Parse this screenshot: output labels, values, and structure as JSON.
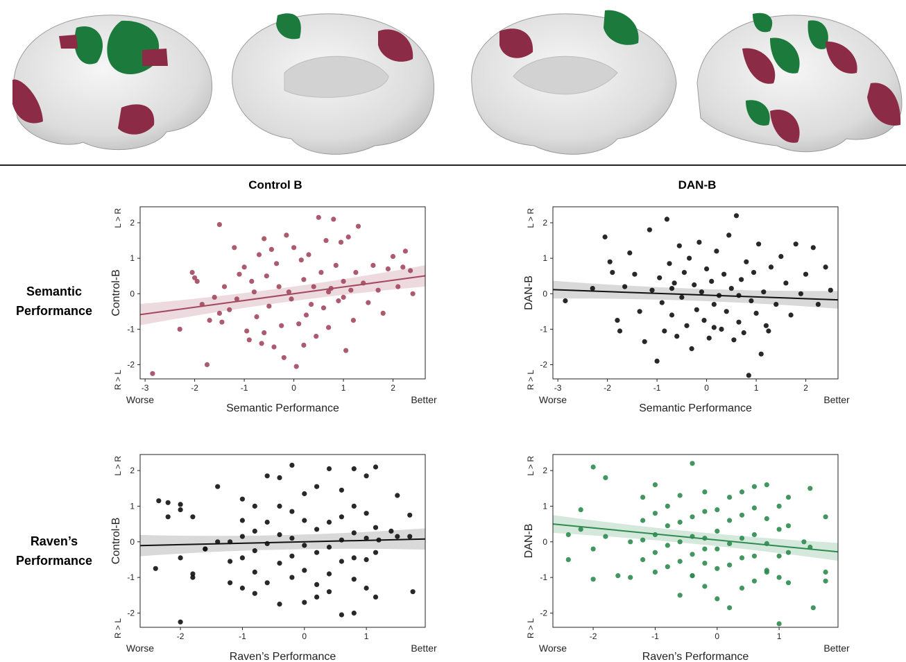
{
  "figure": {
    "col_titles": [
      "Control B",
      "DAN-B"
    ],
    "row_labels": [
      [
        "Semantic",
        "Performance"
      ],
      [
        "Raven’s",
        "Performance"
      ]
    ],
    "colors": {
      "control_red": "#a3485e",
      "dan_green": "#2e8b4f",
      "black": "#111111",
      "brain_surface": "#e6e6e6",
      "brain_red": "#8b2b45",
      "brain_green": "#1c7a3c"
    }
  },
  "chart_data": [
    {
      "id": "control-b-semantic",
      "type": "scatter",
      "xlabel": "Semantic Performance",
      "ylabel": "Control-B",
      "x_low_label": "Worse",
      "x_high_label": "Better",
      "y_high_label": "L > R",
      "y_low_label": "R > L",
      "x_ticks": [
        "-3",
        "-2",
        "-1",
        "0",
        "1",
        "2"
      ],
      "y_ticks": [
        "-2",
        "-1",
        "0",
        "1",
        "2"
      ],
      "xlim": [
        -3.1,
        2.65
      ],
      "ylim": [
        -2.4,
        2.45
      ],
      "color": "#a3485e",
      "fit": {
        "intercept": 0.0,
        "slope": 0.19,
        "band": 0.3
      },
      "points": [
        [
          -2.85,
          -2.25
        ],
        [
          -2.3,
          -1.0
        ],
        [
          -2.05,
          0.6
        ],
        [
          -2.0,
          0.45
        ],
        [
          -1.95,
          0.35
        ],
        [
          -1.85,
          -0.3
        ],
        [
          -1.75,
          -2.0
        ],
        [
          -1.7,
          -0.75
        ],
        [
          -1.6,
          -0.1
        ],
        [
          -1.5,
          1.95
        ],
        [
          -1.5,
          -0.55
        ],
        [
          -1.45,
          -0.8
        ],
        [
          -1.4,
          0.2
        ],
        [
          -1.3,
          -0.45
        ],
        [
          -1.2,
          1.3
        ],
        [
          -1.15,
          -0.15
        ],
        [
          -1.1,
          0.55
        ],
        [
          -1.0,
          0.75
        ],
        [
          -0.95,
          -1.05
        ],
        [
          -0.9,
          -1.3
        ],
        [
          -0.85,
          0.35
        ],
        [
          -0.8,
          0.05
        ],
        [
          -0.75,
          -0.65
        ],
        [
          -0.7,
          1.1
        ],
        [
          -0.65,
          -1.4
        ],
        [
          -0.6,
          1.55
        ],
        [
          -0.55,
          0.5
        ],
        [
          -0.5,
          -0.35
        ],
        [
          -0.45,
          1.25
        ],
        [
          -0.4,
          -1.5
        ],
        [
          -0.35,
          0.85
        ],
        [
          -0.3,
          0.2
        ],
        [
          -0.25,
          -0.9
        ],
        [
          -0.2,
          -1.8
        ],
        [
          -0.15,
          1.65
        ],
        [
          -0.1,
          0.05
        ],
        [
          -0.05,
          -0.15
        ],
        [
          0.0,
          1.3
        ],
        [
          0.05,
          -2.05
        ],
        [
          0.1,
          -0.85
        ],
        [
          0.15,
          0.95
        ],
        [
          0.2,
          0.4
        ],
        [
          0.25,
          -0.6
        ],
        [
          0.3,
          1.1
        ],
        [
          0.35,
          -0.3
        ],
        [
          0.4,
          0.2
        ],
        [
          0.45,
          -1.2
        ],
        [
          0.5,
          2.15
        ],
        [
          0.55,
          0.6
        ],
        [
          0.6,
          -0.4
        ],
        [
          0.65,
          1.5
        ],
        [
          0.7,
          -0.95
        ],
        [
          0.75,
          0.15
        ],
        [
          0.8,
          2.1
        ],
        [
          0.85,
          0.8
        ],
        [
          0.9,
          -0.2
        ],
        [
          0.95,
          1.45
        ],
        [
          1.0,
          0.35
        ],
        [
          1.05,
          -1.6
        ],
        [
          1.1,
          1.6
        ],
        [
          1.15,
          0.1
        ],
        [
          1.2,
          -0.75
        ],
        [
          1.25,
          0.6
        ],
        [
          1.3,
          1.9
        ],
        [
          1.4,
          0.3
        ],
        [
          1.5,
          -0.25
        ],
        [
          1.6,
          0.8
        ],
        [
          1.7,
          0.1
        ],
        [
          1.8,
          -0.55
        ],
        [
          1.9,
          0.7
        ],
        [
          2.0,
          1.05
        ],
        [
          2.1,
          0.2
        ],
        [
          2.2,
          0.75
        ],
        [
          2.25,
          1.2
        ],
        [
          2.35,
          0.65
        ],
        [
          2.4,
          0.0
        ],
        [
          -0.6,
          -1.1
        ],
        [
          0.2,
          -1.45
        ],
        [
          0.7,
          0.05
        ],
        [
          1.0,
          -0.1
        ]
      ]
    },
    {
      "id": "dan-b-semantic",
      "type": "scatter",
      "xlabel": "Semantic Performance",
      "ylabel": "DAN-B",
      "x_low_label": "Worse",
      "x_high_label": "Better",
      "y_high_label": "L > R",
      "y_low_label": "R > L",
      "x_ticks": [
        "-3",
        "-2",
        "-1",
        "0",
        "1",
        "2"
      ],
      "y_ticks": [
        "-2",
        "-1",
        "0",
        "1",
        "2"
      ],
      "xlim": [
        -3.1,
        2.65
      ],
      "ylim": [
        -2.4,
        2.45
      ],
      "color": "#111111",
      "fit": {
        "intercept": -0.04,
        "slope": -0.05,
        "band": 0.25
      },
      "points": [
        [
          -2.85,
          -0.2
        ],
        [
          -2.3,
          0.15
        ],
        [
          -2.05,
          1.6
        ],
        [
          -1.95,
          0.9
        ],
        [
          -1.9,
          0.6
        ],
        [
          -1.8,
          -0.75
        ],
        [
          -1.75,
          -1.05
        ],
        [
          -1.65,
          0.2
        ],
        [
          -1.55,
          1.15
        ],
        [
          -1.45,
          0.55
        ],
        [
          -1.35,
          -0.5
        ],
        [
          -1.25,
          -1.35
        ],
        [
          -1.15,
          1.8
        ],
        [
          -1.1,
          0.1
        ],
        [
          -1.0,
          -1.9
        ],
        [
          -0.95,
          0.45
        ],
        [
          -0.9,
          -0.25
        ],
        [
          -0.85,
          -1.05
        ],
        [
          -0.8,
          2.1
        ],
        [
          -0.75,
          0.85
        ],
        [
          -0.7,
          -0.6
        ],
        [
          -0.65,
          0.3
        ],
        [
          -0.6,
          -1.2
        ],
        [
          -0.55,
          1.35
        ],
        [
          -0.5,
          -0.1
        ],
        [
          -0.45,
          0.6
        ],
        [
          -0.4,
          -0.9
        ],
        [
          -0.35,
          1.0
        ],
        [
          -0.3,
          -1.55
        ],
        [
          -0.25,
          0.25
        ],
        [
          -0.2,
          -0.45
        ],
        [
          -0.15,
          1.45
        ],
        [
          -0.1,
          0.05
        ],
        [
          -0.05,
          -0.75
        ],
        [
          0.0,
          0.7
        ],
        [
          0.05,
          -1.25
        ],
        [
          0.1,
          0.35
        ],
        [
          0.15,
          -0.3
        ],
        [
          0.2,
          1.2
        ],
        [
          0.25,
          -0.05
        ],
        [
          0.3,
          -1.0
        ],
        [
          0.35,
          0.55
        ],
        [
          0.4,
          -0.5
        ],
        [
          0.45,
          1.65
        ],
        [
          0.5,
          0.15
        ],
        [
          0.55,
          -1.3
        ],
        [
          0.6,
          2.2
        ],
        [
          0.65,
          -0.8
        ],
        [
          0.7,
          0.4
        ],
        [
          0.75,
          -1.1
        ],
        [
          0.8,
          0.9
        ],
        [
          0.85,
          -2.3
        ],
        [
          0.9,
          -0.2
        ],
        [
          0.95,
          0.6
        ],
        [
          1.0,
          -0.55
        ],
        [
          1.05,
          1.4
        ],
        [
          1.1,
          -1.7
        ],
        [
          1.15,
          0.05
        ],
        [
          1.2,
          -0.9
        ],
        [
          1.3,
          0.75
        ],
        [
          1.4,
          -0.3
        ],
        [
          1.5,
          1.05
        ],
        [
          1.6,
          0.3
        ],
        [
          1.7,
          -0.6
        ],
        [
          1.8,
          1.4
        ],
        [
          1.9,
          0.0
        ],
        [
          2.0,
          0.55
        ],
        [
          2.15,
          1.3
        ],
        [
          2.25,
          -0.3
        ],
        [
          2.4,
          0.75
        ],
        [
          2.5,
          0.1
        ],
        [
          -0.7,
          0.15
        ],
        [
          0.15,
          -0.95
        ],
        [
          0.65,
          -0.05
        ],
        [
          1.25,
          -1.05
        ]
      ]
    },
    {
      "id": "control-b-raven",
      "type": "scatter",
      "xlabel": "Raven’s Performance",
      "ylabel": "Control-B",
      "x_low_label": "Worse",
      "x_high_label": "Better",
      "y_high_label": "L > R",
      "y_low_label": "R > L",
      "x_ticks": [
        "-2",
        "-1",
        "0",
        "1"
      ],
      "y_ticks": [
        "-2",
        "-1",
        "0",
        "1",
        "2"
      ],
      "xlim": [
        -2.65,
        1.95
      ],
      "ylim": [
        -2.4,
        2.45
      ],
      "color": "#111111",
      "fit": {
        "intercept": 0.0,
        "slope": 0.04,
        "band": 0.3
      },
      "points": [
        [
          -2.4,
          -0.75
        ],
        [
          -2.35,
          1.15
        ],
        [
          -2.2,
          0.7
        ],
        [
          -2.2,
          1.1
        ],
        [
          -2.0,
          1.05
        ],
        [
          -2.0,
          0.9
        ],
        [
          -2.0,
          -0.45
        ],
        [
          -2.0,
          -2.25
        ],
        [
          -1.8,
          0.7
        ],
        [
          -1.8,
          -0.9
        ],
        [
          -1.8,
          -1.0
        ],
        [
          -1.6,
          -0.2
        ],
        [
          -1.4,
          1.55
        ],
        [
          -1.4,
          0.0
        ],
        [
          -1.2,
          0.0
        ],
        [
          -1.2,
          -0.55
        ],
        [
          -1.2,
          -1.15
        ],
        [
          -1.0,
          1.2
        ],
        [
          -1.0,
          0.6
        ],
        [
          -1.0,
          0.15
        ],
        [
          -1.0,
          -0.45
        ],
        [
          -1.0,
          -1.3
        ],
        [
          -0.8,
          1.0
        ],
        [
          -0.8,
          0.3
        ],
        [
          -0.8,
          -0.25
        ],
        [
          -0.8,
          -0.85
        ],
        [
          -0.6,
          1.85
        ],
        [
          -0.6,
          0.55
        ],
        [
          -0.6,
          -0.05
        ],
        [
          -0.6,
          -1.15
        ],
        [
          -0.4,
          1.8
        ],
        [
          -0.4,
          1.0
        ],
        [
          -0.4,
          0.2
        ],
        [
          -0.4,
          -0.6
        ],
        [
          -0.4,
          -1.75
        ],
        [
          -0.2,
          2.15
        ],
        [
          -0.2,
          0.85
        ],
        [
          -0.2,
          0.1
        ],
        [
          -0.2,
          -0.4
        ],
        [
          -0.2,
          -1.0
        ],
        [
          0.0,
          1.35
        ],
        [
          0.0,
          0.6
        ],
        [
          0.0,
          -0.1
        ],
        [
          0.0,
          -0.8
        ],
        [
          0.0,
          -1.7
        ],
        [
          0.2,
          1.55
        ],
        [
          0.2,
          0.35
        ],
        [
          0.2,
          -0.3
        ],
        [
          0.2,
          -1.2
        ],
        [
          0.2,
          -1.55
        ],
        [
          0.4,
          2.05
        ],
        [
          0.4,
          0.55
        ],
        [
          0.4,
          -0.15
        ],
        [
          0.4,
          -0.9
        ],
        [
          0.6,
          1.45
        ],
        [
          0.6,
          0.7
        ],
        [
          0.6,
          0.05
        ],
        [
          0.6,
          -0.55
        ],
        [
          0.6,
          -2.05
        ],
        [
          0.8,
          2.05
        ],
        [
          0.8,
          1.0
        ],
        [
          0.8,
          0.25
        ],
        [
          0.8,
          -0.45
        ],
        [
          0.8,
          -1.05
        ],
        [
          0.8,
          -2.0
        ],
        [
          1.0,
          1.85
        ],
        [
          1.0,
          0.8
        ],
        [
          1.0,
          0.1
        ],
        [
          1.0,
          -0.5
        ],
        [
          1.0,
          -1.3
        ],
        [
          1.15,
          2.1
        ],
        [
          1.15,
          0.4
        ],
        [
          1.15,
          -0.3
        ],
        [
          1.15,
          -1.55
        ],
        [
          1.4,
          0.3
        ],
        [
          1.5,
          1.3
        ],
        [
          1.5,
          0.15
        ],
        [
          1.7,
          0.75
        ],
        [
          1.7,
          0.15
        ],
        [
          1.75,
          -1.4
        ],
        [
          1.2,
          0.05
        ],
        [
          -1.6,
          -0.2
        ],
        [
          0.4,
          -1.4
        ],
        [
          -0.8,
          -1.45
        ]
      ]
    },
    {
      "id": "dan-b-raven",
      "type": "scatter",
      "xlabel": "Raven’s Performance",
      "ylabel": "DAN-B",
      "x_low_label": "Worse",
      "x_high_label": "Better",
      "y_high_label": "L > R",
      "y_low_label": "R > L",
      "x_ticks": [
        "-2",
        "-1",
        "0",
        "1"
      ],
      "y_ticks": [
        "-2",
        "-1",
        "0",
        "1",
        "2"
      ],
      "xlim": [
        -2.65,
        1.95
      ],
      "ylim": [
        -2.4,
        2.45
      ],
      "color": "#2e8b4f",
      "fit": {
        "intercept": 0.05,
        "slope": -0.17,
        "band": 0.25
      },
      "points": [
        [
          -2.4,
          0.2
        ],
        [
          -2.4,
          -0.5
        ],
        [
          -2.2,
          0.9
        ],
        [
          -2.2,
          0.35
        ],
        [
          -2.0,
          2.1
        ],
        [
          -2.0,
          -0.2
        ],
        [
          -2.0,
          -1.05
        ],
        [
          -1.8,
          1.8
        ],
        [
          -1.8,
          0.15
        ],
        [
          -1.6,
          -0.95
        ],
        [
          -1.4,
          -1.0
        ],
        [
          -1.4,
          0.0
        ],
        [
          -1.2,
          1.25
        ],
        [
          -1.2,
          0.6
        ],
        [
          -1.2,
          0.05
        ],
        [
          -1.2,
          -0.5
        ],
        [
          -1.0,
          1.6
        ],
        [
          -1.0,
          0.8
        ],
        [
          -1.0,
          0.2
        ],
        [
          -1.0,
          -0.3
        ],
        [
          -1.0,
          -0.85
        ],
        [
          -0.8,
          1.0
        ],
        [
          -0.8,
          0.45
        ],
        [
          -0.8,
          -0.1
        ],
        [
          -0.8,
          -0.7
        ],
        [
          -0.6,
          1.3
        ],
        [
          -0.6,
          0.55
        ],
        [
          -0.6,
          0.0
        ],
        [
          -0.6,
          -0.55
        ],
        [
          -0.6,
          -1.5
        ],
        [
          -0.4,
          2.2
        ],
        [
          -0.4,
          0.7
        ],
        [
          -0.4,
          0.15
        ],
        [
          -0.4,
          -0.35
        ],
        [
          -0.4,
          -0.95
        ],
        [
          -0.2,
          1.4
        ],
        [
          -0.2,
          0.85
        ],
        [
          -0.2,
          0.1
        ],
        [
          -0.2,
          -0.6
        ],
        [
          -0.2,
          -1.25
        ],
        [
          0.0,
          0.9
        ],
        [
          0.0,
          0.3
        ],
        [
          0.0,
          -0.2
        ],
        [
          0.0,
          -0.75
        ],
        [
          0.0,
          -1.6
        ],
        [
          0.2,
          1.25
        ],
        [
          0.2,
          0.6
        ],
        [
          0.2,
          -0.05
        ],
        [
          0.2,
          -0.65
        ],
        [
          0.2,
          -1.85
        ],
        [
          0.4,
          1.4
        ],
        [
          0.4,
          0.75
        ],
        [
          0.4,
          0.1
        ],
        [
          0.4,
          -0.45
        ],
        [
          0.4,
          -1.3
        ],
        [
          0.6,
          1.55
        ],
        [
          0.6,
          0.95
        ],
        [
          0.6,
          0.2
        ],
        [
          0.6,
          -0.4
        ],
        [
          0.6,
          -1.1
        ],
        [
          0.8,
          1.6
        ],
        [
          0.8,
          0.65
        ],
        [
          0.8,
          -0.05
        ],
        [
          0.8,
          -0.8
        ],
        [
          1.0,
          1.0
        ],
        [
          1.0,
          0.35
        ],
        [
          1.0,
          -0.4
        ],
        [
          1.0,
          -1.0
        ],
        [
          1.0,
          -2.3
        ],
        [
          1.15,
          1.25
        ],
        [
          1.15,
          0.45
        ],
        [
          1.15,
          -0.3
        ],
        [
          1.15,
          -1.15
        ],
        [
          1.4,
          0.0
        ],
        [
          1.5,
          1.5
        ],
        [
          1.5,
          -0.15
        ],
        [
          1.55,
          -1.85
        ],
        [
          1.75,
          0.7
        ],
        [
          1.75,
          -0.85
        ],
        [
          1.75,
          -1.1
        ],
        [
          -0.4,
          -0.95
        ],
        [
          0.8,
          -0.85
        ],
        [
          -0.2,
          -0.2
        ]
      ]
    }
  ]
}
